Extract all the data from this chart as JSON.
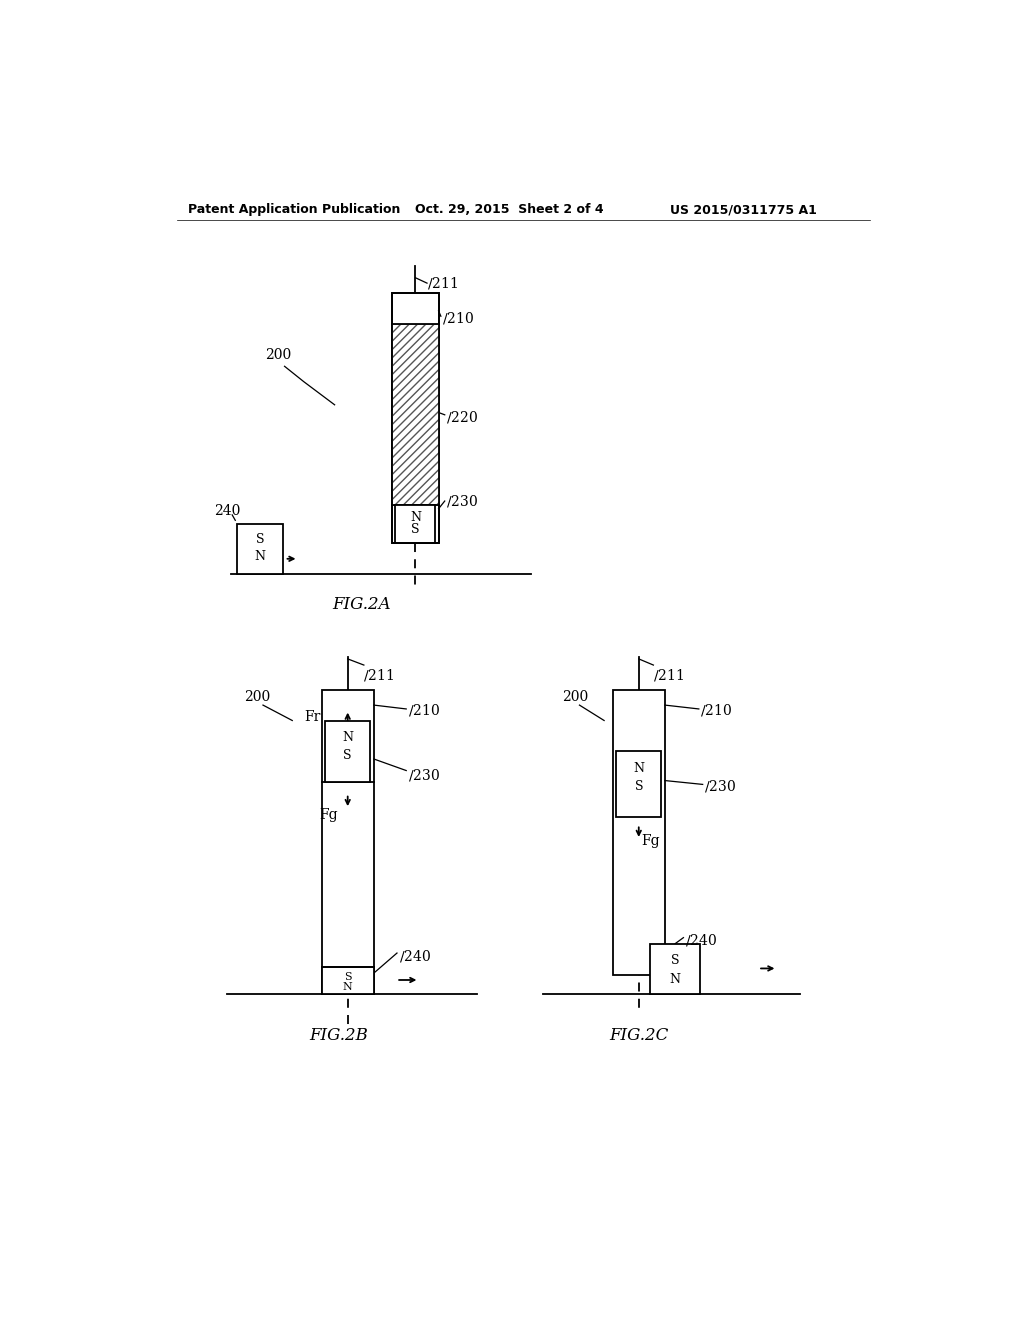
{
  "bg_color": "#ffffff",
  "header_text": "Patent Application Publication",
  "header_date": "Oct. 29, 2015  Sheet 2 of 4",
  "header_patent": "US 2015/0311775 A1",
  "fig2a_label": "FIG.2A",
  "fig2b_label": "FIG.2B",
  "fig2c_label": "FIG.2C",
  "line_color": "#000000",
  "text_color": "#000000",
  "font_size_label": 10,
  "font_size_caption": 12,
  "font_size_header": 9,
  "lw": 1.3
}
